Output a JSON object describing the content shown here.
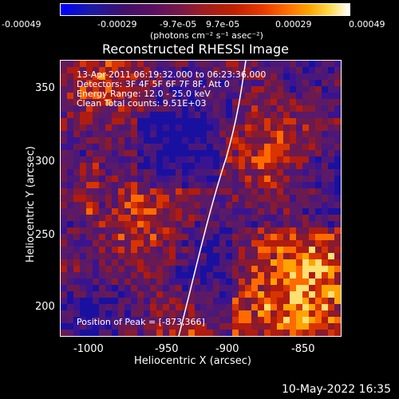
{
  "colorbar": {
    "tick_labels": [
      "-0.00049",
      "-0.00029",
      "-9.7e-05",
      "9.7e-05",
      "0.00029",
      "0.00049"
    ],
    "unit": "(photons cm⁻² s⁻¹ asec⁻²)",
    "colors": [
      "#0000ff",
      "#40106a",
      "#a01e1e",
      "#ff6a00",
      "#ffd84a",
      "#ffffff"
    ]
  },
  "title": "Reconstructed RHESSI Image",
  "info": {
    "line1": "13-Apr-2011 06:19:32.000 to 06:23:36.000",
    "line2": "Detectors: 3F 4F 5F 6F 7F 8F, Att 0",
    "line3": "Energy Range: 12.0 - 25.0 keV",
    "line4": "Clean    Total counts: 9.51E+03",
    "peak": "Position of Peak = [-873,366]"
  },
  "axes": {
    "x_label": "Heliocentric X (arcsec)",
    "y_label": "Heliocentric Y (arcsec)",
    "x_ticks": [
      "-1000",
      "-950",
      "-900",
      "-850"
    ],
    "y_ticks": [
      "350",
      "300",
      "250",
      "200"
    ]
  },
  "timestamp": "10-May-2022 16:35"
}
